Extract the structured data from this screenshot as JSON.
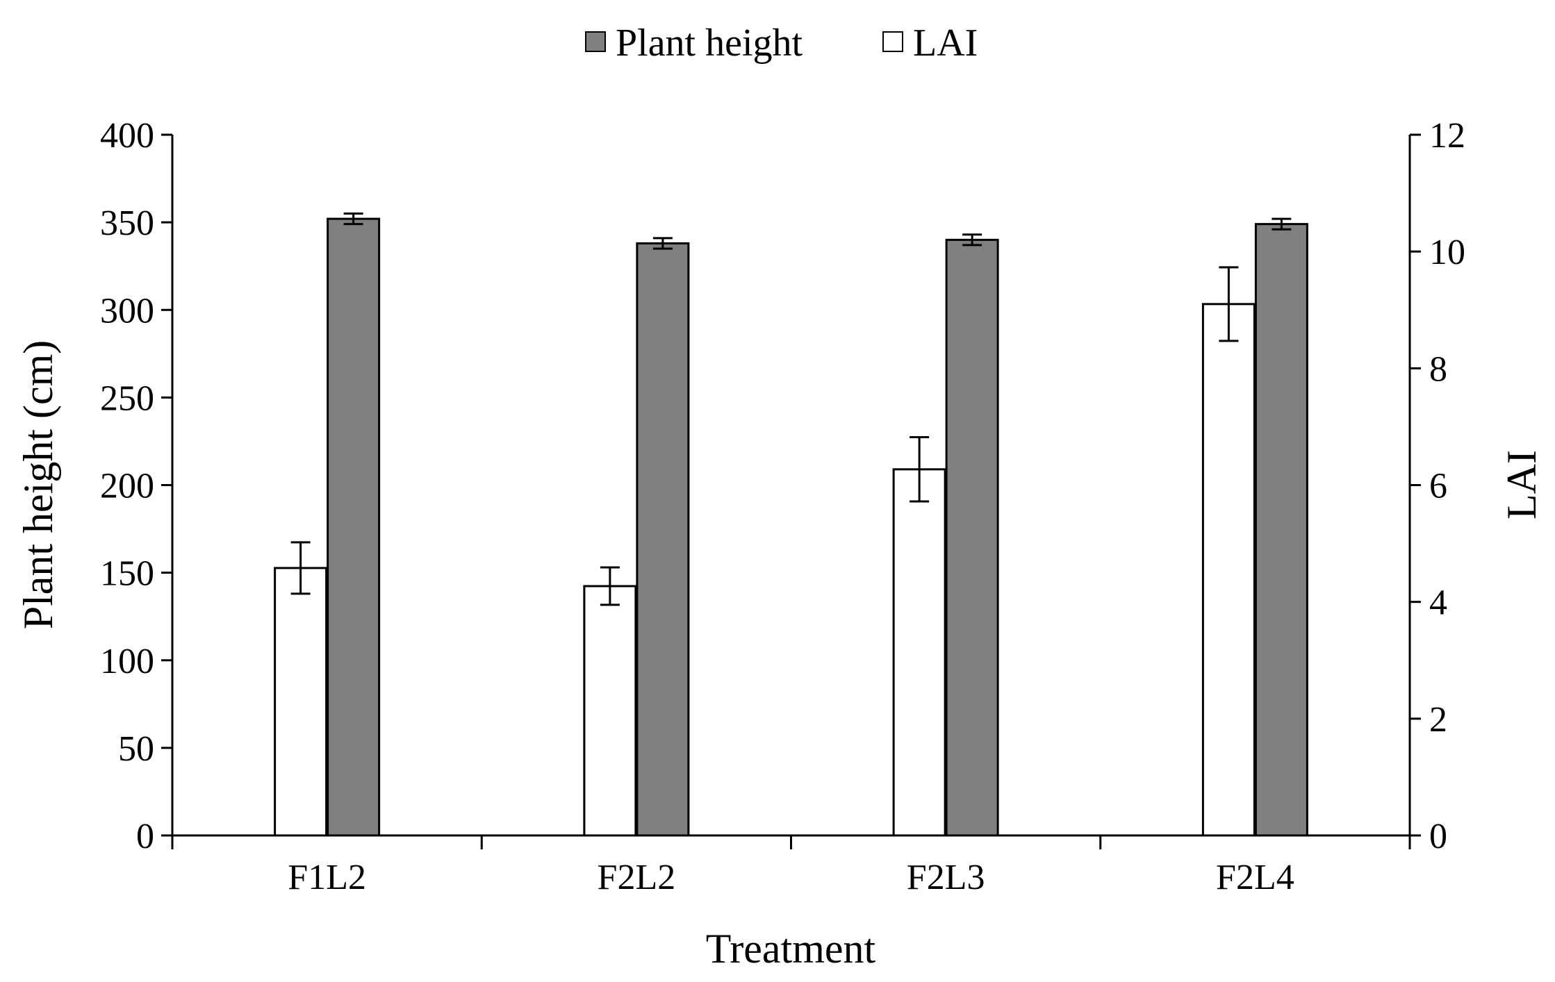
{
  "chart_data": {
    "type": "bar",
    "categories": [
      "F1L2",
      "F2L2",
      "F2L3",
      "F2L4"
    ],
    "series": [
      {
        "name": "LAI",
        "axis": "right",
        "color": "#ffffff",
        "values": [
          4.58,
          4.27,
          6.27,
          9.1
        ],
        "errors": [
          0.44,
          0.32,
          0.55,
          0.63
        ]
      },
      {
        "name": "Plant height",
        "axis": "left",
        "color": "#808080",
        "values": [
          352,
          338,
          340,
          349
        ],
        "errors": [
          3,
          3,
          3,
          3
        ]
      }
    ],
    "xlabel": "Treatment",
    "ylabel_left": "Plant height (cm)",
    "ylabel_right": "LAI",
    "ylim_left": [
      0,
      400
    ],
    "ylim_right": [
      0,
      12
    ],
    "yticks_left": [
      "0",
      "50",
      "100",
      "150",
      "200",
      "250",
      "300",
      "350",
      "400"
    ],
    "yticks_right": [
      "0",
      "2",
      "4",
      "6",
      "8",
      "10",
      "12"
    ],
    "legend_position": "top-center",
    "legend": [
      "Plant height",
      "LAI"
    ]
  }
}
